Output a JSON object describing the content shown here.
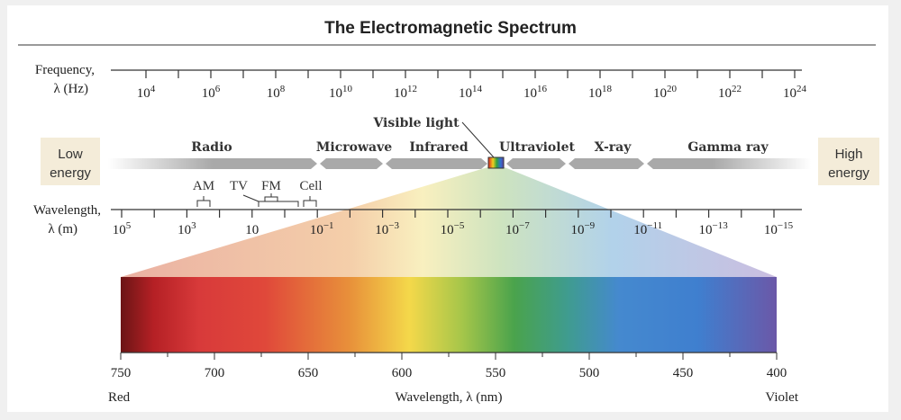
{
  "title": "The Electromagnetic Spectrum",
  "frequency_axis": {
    "label_line1": "Frequency,",
    "label_line2": "λ (Hz)",
    "ticks": [
      {
        "base": "10",
        "exp": "4"
      },
      {
        "base": "10",
        "exp": "6"
      },
      {
        "base": "10",
        "exp": "8"
      },
      {
        "base": "10",
        "exp": "10"
      },
      {
        "base": "10",
        "exp": "12"
      },
      {
        "base": "10",
        "exp": "14"
      },
      {
        "base": "10",
        "exp": "16"
      },
      {
        "base": "10",
        "exp": "18"
      },
      {
        "base": "10",
        "exp": "20"
      },
      {
        "base": "10",
        "exp": "22"
      },
      {
        "base": "10",
        "exp": "24"
      }
    ]
  },
  "wavelength_axis": {
    "label_line1": "Wavelength,",
    "label_line2": "λ (m)",
    "ticks": [
      {
        "base": "10",
        "exp": "5"
      },
      {
        "base": "10",
        "exp": "3"
      },
      {
        "base": "10",
        "exp": ""
      },
      {
        "base": "10",
        "exp": "−1"
      },
      {
        "base": "10",
        "exp": "−3"
      },
      {
        "base": "10",
        "exp": "−5"
      },
      {
        "base": "10",
        "exp": "−7"
      },
      {
        "base": "10",
        "exp": "−9"
      },
      {
        "base": "10",
        "exp": "−11"
      },
      {
        "base": "10",
        "exp": "−13"
      },
      {
        "base": "10",
        "exp": "−15"
      }
    ]
  },
  "bands": [
    "Radio",
    "Microwave",
    "Infrared",
    "Ultraviolet",
    "X-ray",
    "Gamma ray"
  ],
  "visible_light_label": "Visible light",
  "radio_subbands": [
    "AM",
    "TV",
    "FM",
    "Cell"
  ],
  "low_energy": {
    "line1": "Low",
    "line2": "energy"
  },
  "high_energy": {
    "line1": "High",
    "line2": "energy"
  },
  "visible_axis": {
    "ticks": [
      "750",
      "700",
      "650",
      "600",
      "550",
      "500",
      "450",
      "400"
    ],
    "left_label": "Red",
    "center_label": "Wavelength, λ (nm)",
    "right_label": "Violet"
  },
  "colors": {
    "energy_box": "#f4ecd9",
    "arrow": "#a9a9a9"
  }
}
